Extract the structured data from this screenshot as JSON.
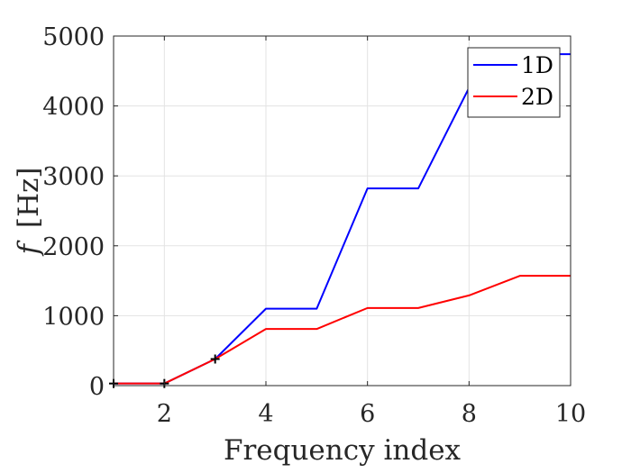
{
  "chart_data": {
    "type": "line",
    "xlabel": "Frequency index",
    "ylabel_italic": "f",
    "ylabel_unit": "[Hz]",
    "xlim": [
      1,
      10
    ],
    "ylim": [
      0,
      5000
    ],
    "x_ticks": [
      2,
      4,
      6,
      8,
      10
    ],
    "y_ticks": [
      0,
      1000,
      2000,
      3000,
      4000,
      5000
    ],
    "x_tick_labels": [
      "2",
      "4",
      "6",
      "8",
      "10"
    ],
    "y_tick_labels": [
      "0",
      "1000",
      "2000",
      "3000",
      "4000",
      "5000"
    ],
    "grid": true,
    "legend_position": "top-right",
    "x": [
      1,
      2,
      3,
      4,
      5,
      6,
      7,
      8,
      9,
      10
    ],
    "series": [
      {
        "name": "1D",
        "color": "#0000ff",
        "values": [
          30,
          30,
          380,
          1100,
          1100,
          2820,
          2820,
          4260,
          4740,
          4740
        ]
      },
      {
        "name": "2D",
        "color": "#ff0000",
        "values": [
          30,
          30,
          380,
          810,
          810,
          1110,
          1110,
          1290,
          1570,
          1570
        ]
      }
    ],
    "markers": {
      "symbol": "+",
      "color": "#000000",
      "x": [
        1,
        2,
        3
      ],
      "y": [
        30,
        30,
        380
      ]
    }
  }
}
